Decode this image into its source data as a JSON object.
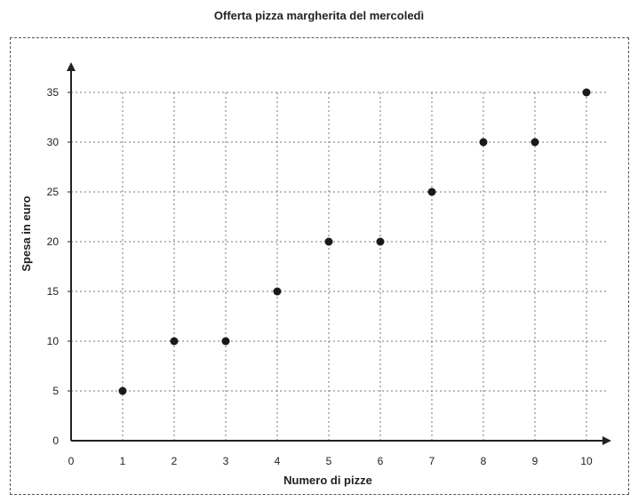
{
  "chart_data": {
    "type": "scatter",
    "title": "Offerta pizza margherita del mercoledì",
    "xlabel": "Numero di pizze",
    "ylabel": "Spesa in euro",
    "xlim": [
      0,
      10
    ],
    "ylim": [
      0,
      35
    ],
    "x_ticks": [
      0,
      1,
      2,
      3,
      4,
      5,
      6,
      7,
      8,
      9,
      10
    ],
    "y_ticks": [
      0,
      5,
      10,
      15,
      20,
      25,
      30,
      35
    ],
    "grid": true,
    "points": [
      {
        "x": 1,
        "y": 5
      },
      {
        "x": 2,
        "y": 10
      },
      {
        "x": 3,
        "y": 10
      },
      {
        "x": 4,
        "y": 15
      },
      {
        "x": 5,
        "y": 20
      },
      {
        "x": 6,
        "y": 20
      },
      {
        "x": 7,
        "y": 25
      },
      {
        "x": 8,
        "y": 30
      },
      {
        "x": 9,
        "y": 30
      },
      {
        "x": 10,
        "y": 35
      }
    ]
  }
}
